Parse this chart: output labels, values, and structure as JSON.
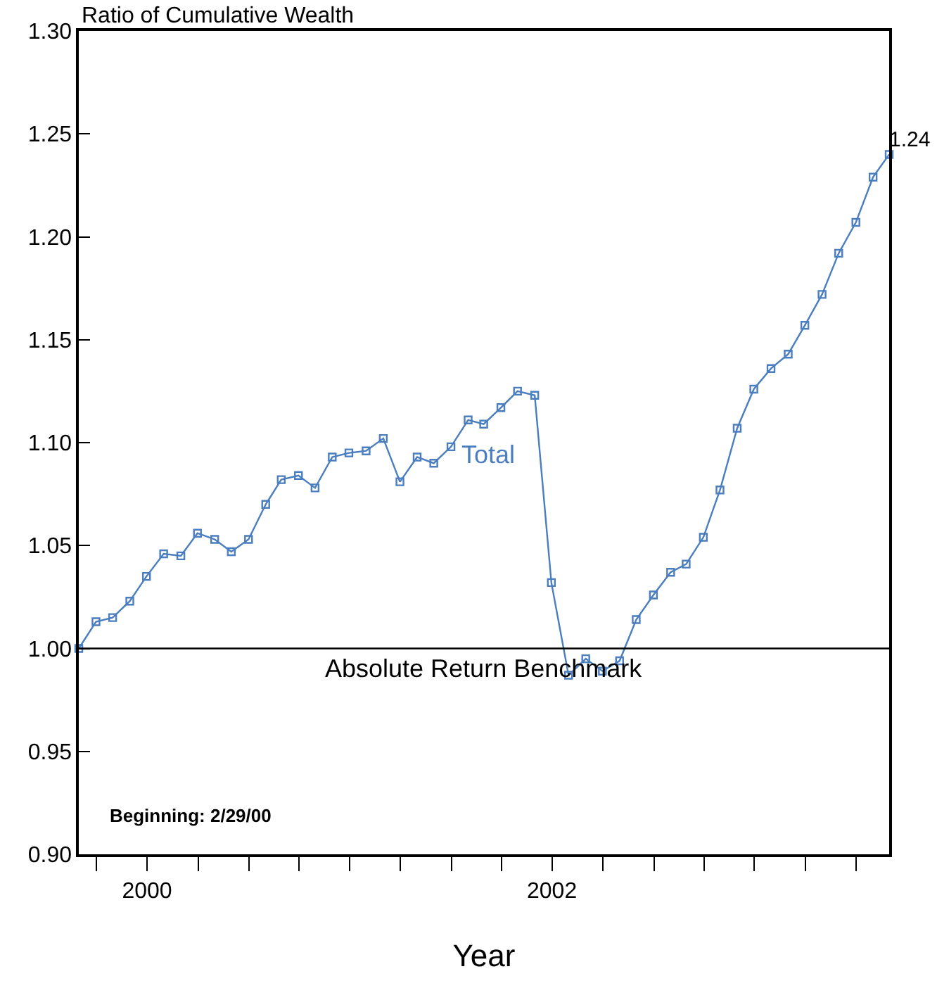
{
  "chart_data": {
    "type": "line",
    "ylabel": "Ratio of Cumulative Wealth",
    "xlabel": "Year",
    "x": [
      "2000-02-29",
      "2000-03-31",
      "2000-04-30",
      "2000-05-31",
      "2000-06-30",
      "2000-07-31",
      "2000-08-31",
      "2000-09-30",
      "2000-10-31",
      "2000-11-30",
      "2000-12-31",
      "2001-01-31",
      "2001-02-28",
      "2001-03-31",
      "2001-04-30",
      "2001-05-31",
      "2001-06-30",
      "2001-07-31",
      "2001-08-31",
      "2001-09-30",
      "2001-10-31",
      "2001-11-30",
      "2001-12-31",
      "2002-01-31",
      "2002-02-28",
      "2002-03-31",
      "2002-04-30",
      "2002-05-31",
      "2002-06-30",
      "2002-07-31",
      "2002-08-31",
      "2002-09-30",
      "2002-10-31",
      "2002-11-30",
      "2002-12-31",
      "2003-01-31",
      "2003-02-28",
      "2003-03-31",
      "2003-04-30",
      "2003-05-31",
      "2003-06-30",
      "2003-07-31",
      "2003-08-31",
      "2003-09-30",
      "2003-10-31",
      "2003-11-30",
      "2003-12-31",
      "2004-01-31",
      "2004-02-29"
    ],
    "series": [
      {
        "name": "Total",
        "color": "#4a7ebf",
        "values": [
          1.0,
          1.013,
          1.015,
          1.023,
          1.035,
          1.046,
          1.045,
          1.056,
          1.053,
          1.047,
          1.053,
          1.07,
          1.082,
          1.084,
          1.078,
          1.093,
          1.095,
          1.096,
          1.102,
          1.081,
          1.093,
          1.09,
          1.098,
          1.111,
          1.109,
          1.117,
          1.125,
          1.123,
          1.032,
          0.987,
          0.995,
          0.989,
          0.994,
          1.014,
          1.026,
          1.037,
          1.041,
          1.054,
          1.077,
          1.107,
          1.126,
          1.136,
          1.143,
          1.157,
          1.172,
          1.192,
          1.207,
          1.229,
          1.24
        ],
        "value_labels": [
          null,
          null,
          null,
          null,
          null,
          null,
          null,
          null,
          null,
          null,
          null,
          null,
          null,
          null,
          null,
          null,
          null,
          null,
          null,
          null,
          null,
          null,
          null,
          null,
          null,
          null,
          null,
          null,
          null,
          null,
          null,
          null,
          null,
          null,
          null,
          null,
          null,
          null,
          null,
          null,
          null,
          null,
          null,
          null,
          null,
          null,
          null,
          null,
          "1.24"
        ]
      }
    ],
    "ylim": [
      0.9,
      1.3
    ],
    "yticks": [
      {
        "value": 0.9,
        "label": "0.90"
      },
      {
        "value": 0.95,
        "label": "0.95"
      },
      {
        "value": 1.0,
        "label": "1.00"
      },
      {
        "value": 1.05,
        "label": "1.05"
      },
      {
        "value": 1.1,
        "label": "1.10"
      },
      {
        "value": 1.15,
        "label": "1.15"
      },
      {
        "value": 1.2,
        "label": "1.20"
      },
      {
        "value": 1.25,
        "label": "1.25"
      },
      {
        "value": 1.3,
        "label": "1.30"
      }
    ],
    "xlim": [
      "2000-02-29",
      "2004-02-29"
    ],
    "xticks": [
      {
        "value": "2000-04-01",
        "label": null
      },
      {
        "value": "2000-07-01",
        "label": "2000"
      },
      {
        "value": "2000-10-01",
        "label": null
      },
      {
        "value": "2001-01-01",
        "label": null
      },
      {
        "value": "2001-04-01",
        "label": null
      },
      {
        "value": "2001-07-01",
        "label": null
      },
      {
        "value": "2001-10-01",
        "label": null
      },
      {
        "value": "2002-01-01",
        "label": null
      },
      {
        "value": "2002-04-01",
        "label": null
      },
      {
        "value": "2002-07-01",
        "label": "2002"
      },
      {
        "value": "2002-10-01",
        "label": null
      },
      {
        "value": "2003-01-01",
        "label": null
      },
      {
        "value": "2003-04-01",
        "label": null
      },
      {
        "value": "2003-07-01",
        "label": null
      },
      {
        "value": "2003-10-01",
        "label": null
      },
      {
        "value": "2004-01-01",
        "label": null
      }
    ],
    "ref_lines": [
      {
        "axis": "y",
        "value": 1.0,
        "label": "Absolute Return Benchmark",
        "color": "#000000"
      }
    ],
    "annotations": [
      "Beginning: 2/29/00"
    ],
    "marker": "square",
    "line_style": "solid",
    "grid": false,
    "legend": false
  }
}
